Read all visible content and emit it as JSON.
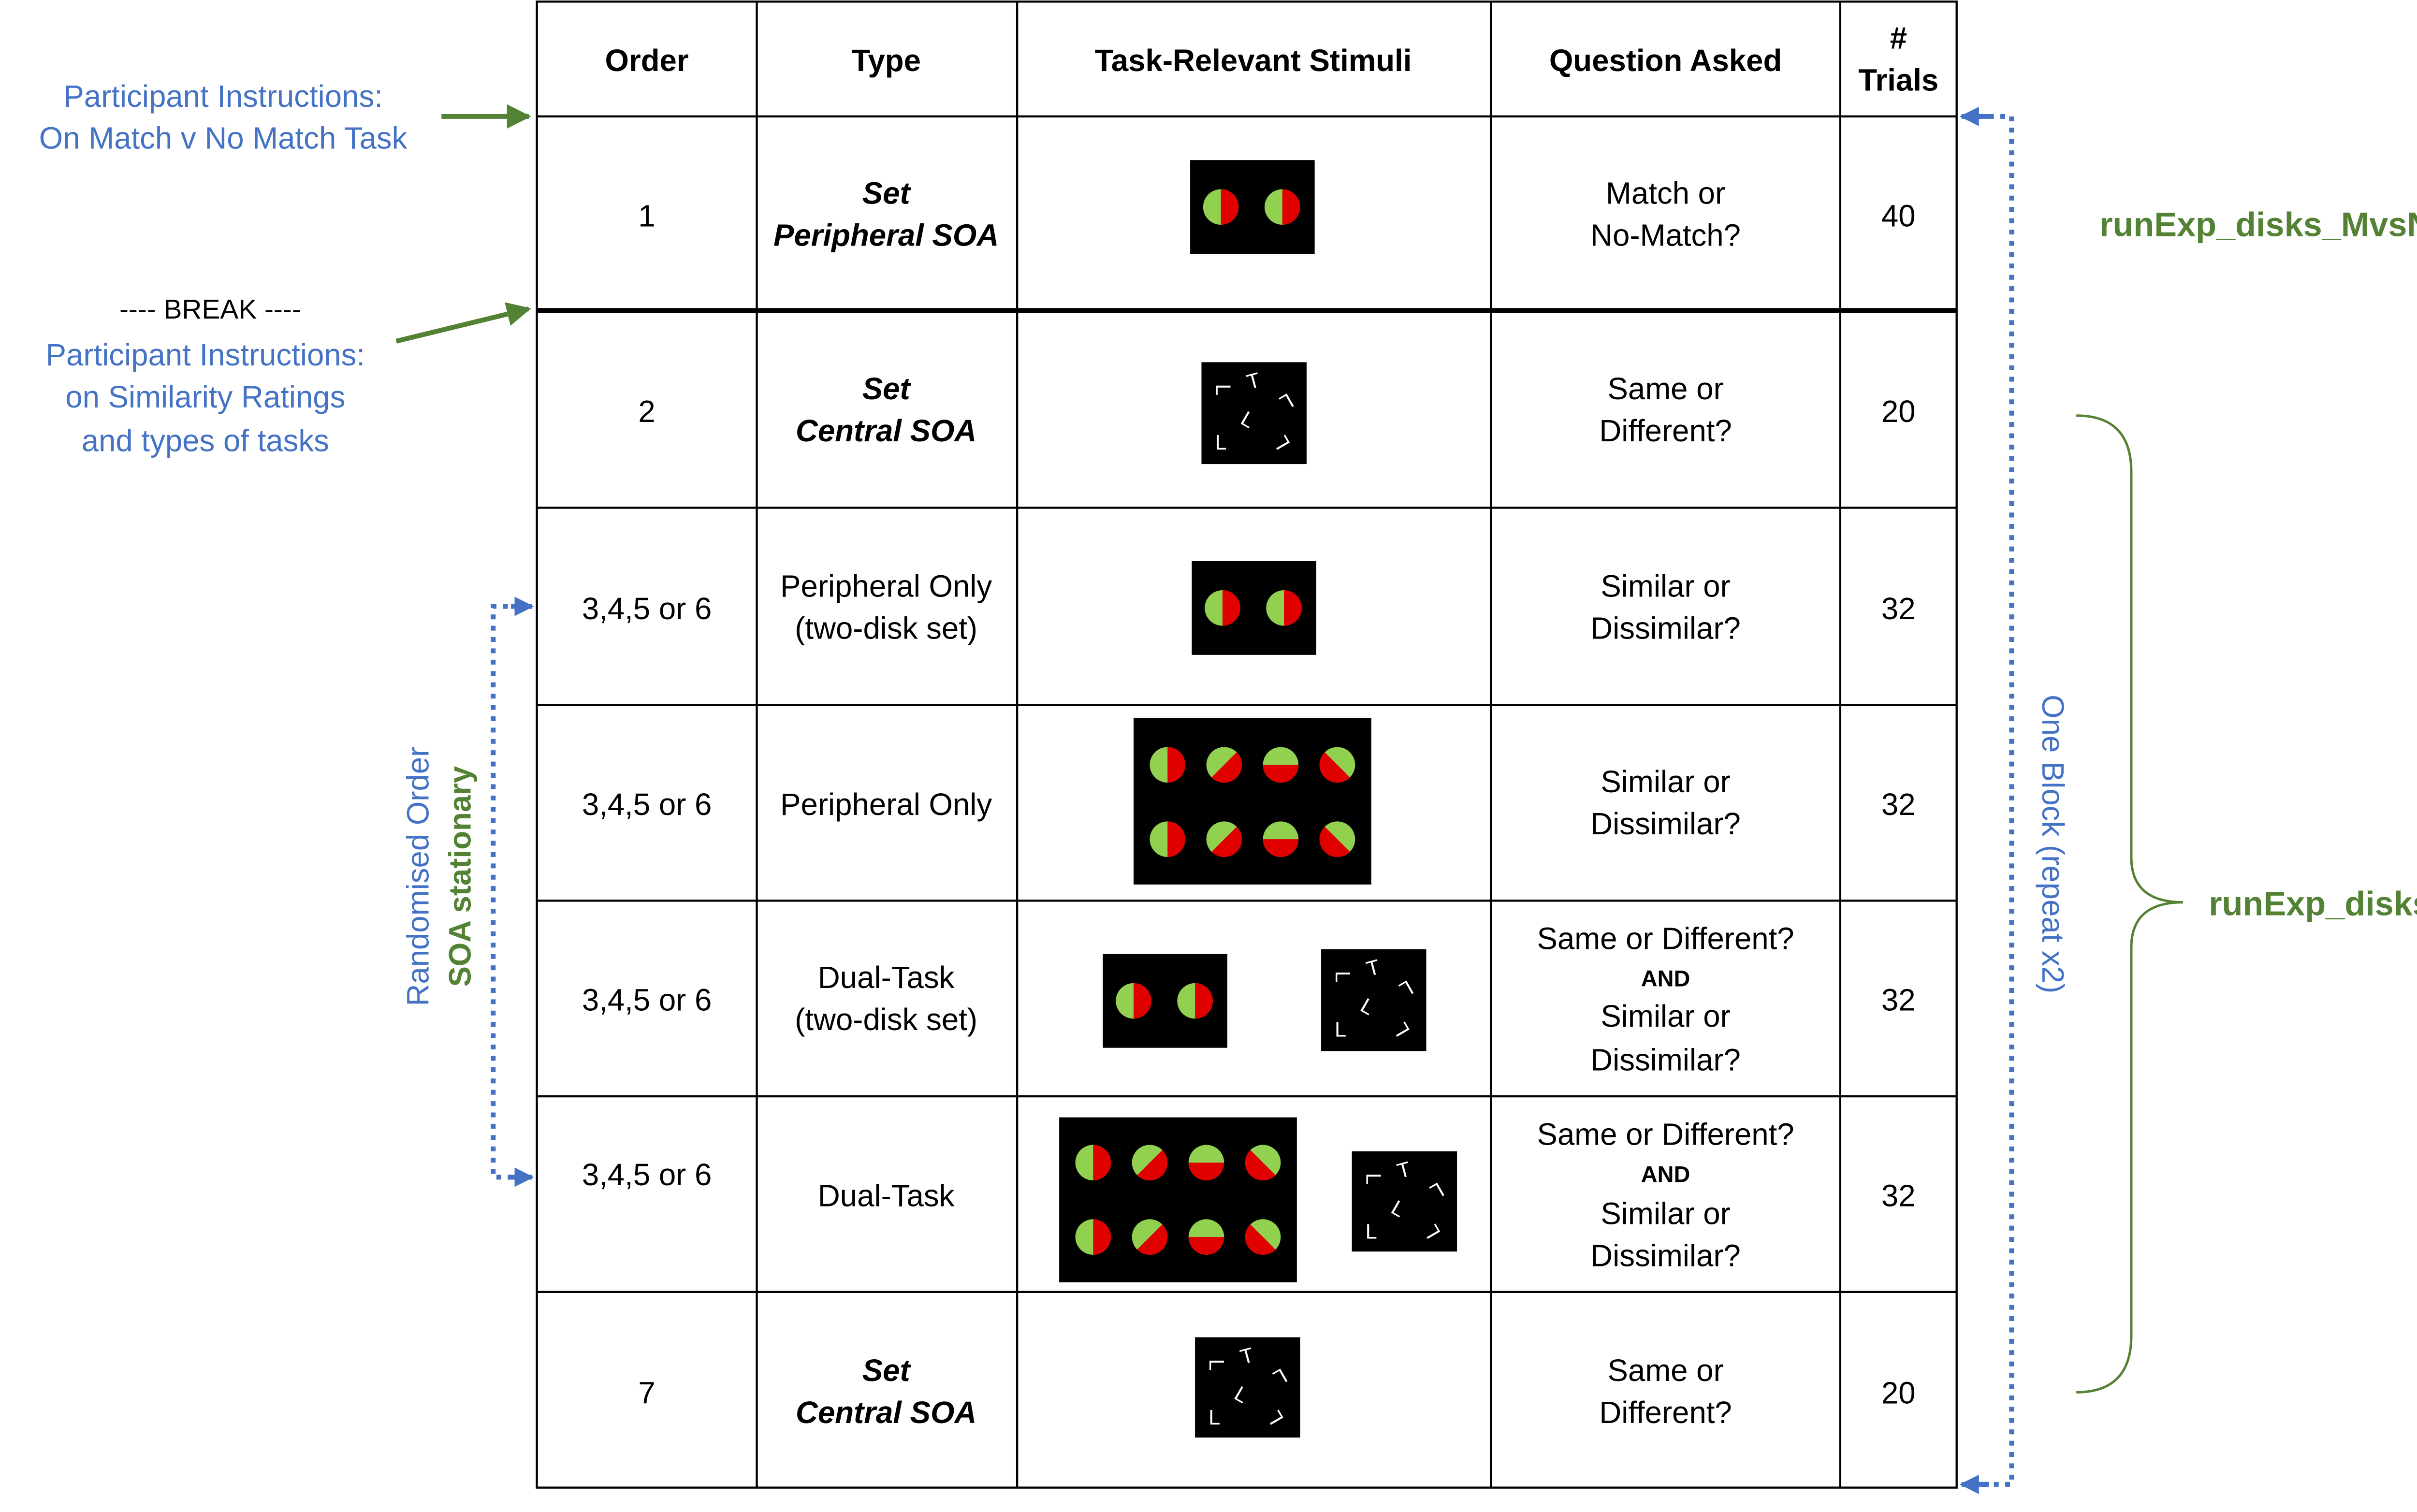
{
  "table": {
    "headers": [
      "Order",
      "Type",
      "Task-Relevant Stimuli",
      "Question Asked",
      "#",
      "Trials"
    ],
    "rows": [
      {
        "order": "1",
        "type_line1": "Set",
        "type_line2": "Peripheral SOA",
        "question_line1": "Match or",
        "question_line2": "No-Match?",
        "trials": "40"
      },
      {
        "order": "2",
        "type_line1": "Set",
        "type_line2": "Central SOA",
        "question_line1": "Same or",
        "question_line2": "Different?",
        "trials": "20"
      },
      {
        "order": "3,4,5 or 6",
        "type_line1": "Peripheral Only",
        "type_line2": "(two-disk set)",
        "question_line1": "Similar or",
        "question_line2": "Dissimilar?",
        "trials": "32"
      },
      {
        "order": "3,4,5 or 6",
        "type_line1": "Peripheral Only",
        "question_line1": "Similar or",
        "question_line2": "Dissimilar?",
        "trials": "32"
      },
      {
        "order": "3,4,5 or 6",
        "type_line1": "Dual-Task",
        "type_line2": "(two-disk set)",
        "question_line1": "Same or Different?",
        "question_and": "AND",
        "question_line3": "Similar or",
        "question_line4": "Dissimilar?",
        "trials": "32"
      },
      {
        "order": "3,4,5 or 6",
        "type_line1": "Dual-Task",
        "question_line1": "Same or Different?",
        "question_and": "AND",
        "question_line3": "Similar or",
        "question_line4": "Dissimilar?",
        "trials": "32"
      },
      {
        "order": "7",
        "type_line1": "Set",
        "type_line2": "Central SOA",
        "question_line1": "Same or",
        "question_line2": "Different?",
        "trials": "20"
      }
    ]
  },
  "annotations": {
    "instructions1_line1": "Participant Instructions:",
    "instructions1_line2": "On Match v No Match Task",
    "break_label": "---- BREAK ----",
    "instructions2_line1": "Participant Instructions:",
    "instructions2_line2": "on Similarity Ratings",
    "instructions2_line3": "and types of tasks",
    "randomised_label": "Randomised Order",
    "soa_label": "SOA stationary",
    "one_block_label": "One Block  (repeat x2)",
    "script1": "runExp_disks_MvsNM.m",
    "script2": "runExp_disks.m"
  },
  "letter_glyphs": [
    "T",
    "L"
  ],
  "colors": {
    "blue": "#4472C4",
    "green": "#548235",
    "disk_green": "#92D050",
    "disk_red": "#E00000",
    "stimulus_bg": "#000000"
  }
}
